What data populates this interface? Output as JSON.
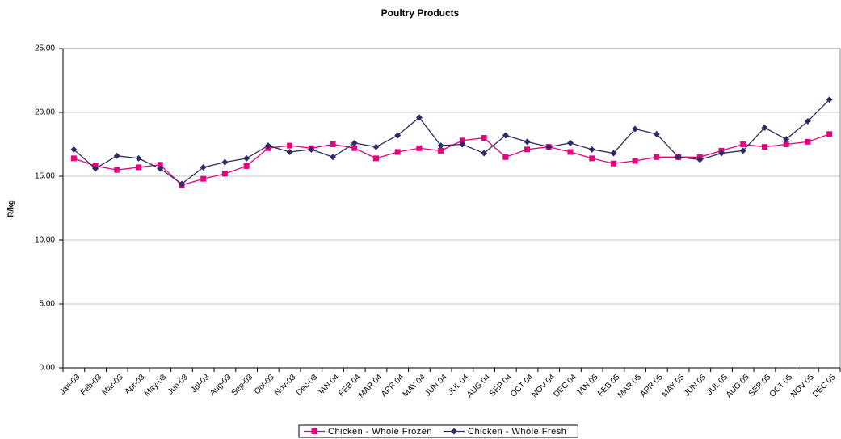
{
  "chart_data": {
    "type": "line",
    "title": "Poultry Products",
    "y_label": "R/kg",
    "categories": [
      "Jan-03",
      "Feb-03",
      "Mar-03",
      "Apr-03",
      "May-03",
      "Jun-03",
      "Jul-03",
      "Aug-03",
      "Sep-03",
      "Oct-03",
      "Nov-03",
      "Dec-03",
      "JAN 04",
      "FEB 04",
      "MAR 04",
      "APR 04",
      "MAY 04",
      "JUN 04",
      "JUL 04",
      "AUG 04",
      "SEP 04",
      "OCT 04",
      "NOV 04",
      "DEC 04",
      "JAN 05",
      "FEB 05",
      "MAR 05",
      "APR 05",
      "MAY 05",
      "JUN 05",
      "JUL 05",
      "AUG 05",
      "SEP 05",
      "OCT 05",
      "NOV 05",
      "DEC 05"
    ],
    "series": [
      {
        "name": "Chicken - Whole Frozen",
        "color": "#e6007e",
        "marker": "square",
        "values": [
          16.4,
          15.8,
          15.5,
          15.7,
          15.9,
          14.3,
          14.8,
          15.2,
          15.8,
          17.2,
          17.4,
          17.2,
          17.5,
          17.2,
          16.4,
          16.9,
          17.2,
          17.0,
          17.8,
          18.0,
          16.5,
          17.1,
          17.3,
          16.9,
          16.4,
          16.0,
          16.2,
          16.5,
          16.5,
          16.5,
          17.0,
          17.5,
          17.3,
          17.5,
          17.7,
          18.3
        ]
      },
      {
        "name": "Chicken - Whole Fresh",
        "color": "#2b2b66",
        "marker": "diamond",
        "values": [
          17.1,
          15.6,
          16.6,
          16.4,
          15.6,
          14.4,
          15.7,
          16.1,
          16.4,
          17.4,
          16.9,
          17.1,
          16.5,
          17.6,
          17.3,
          18.2,
          19.6,
          17.4,
          17.5,
          16.8,
          18.2,
          17.7,
          17.3,
          17.6,
          17.1,
          16.8,
          18.7,
          18.3,
          16.5,
          16.3,
          16.8,
          17.0,
          18.8,
          17.9,
          19.3,
          21.0
        ]
      }
    ],
    "ylim": [
      0,
      25
    ],
    "yticks": [
      {
        "value": 0,
        "label": "0.00"
      },
      {
        "value": 5,
        "label": "5.00"
      },
      {
        "value": 10,
        "label": "10.00"
      },
      {
        "value": 15,
        "label": "15.00"
      },
      {
        "value": 20,
        "label": "20.00"
      },
      {
        "value": 25,
        "label": "25.00"
      }
    ],
    "grid": true,
    "legend": "bottom"
  }
}
